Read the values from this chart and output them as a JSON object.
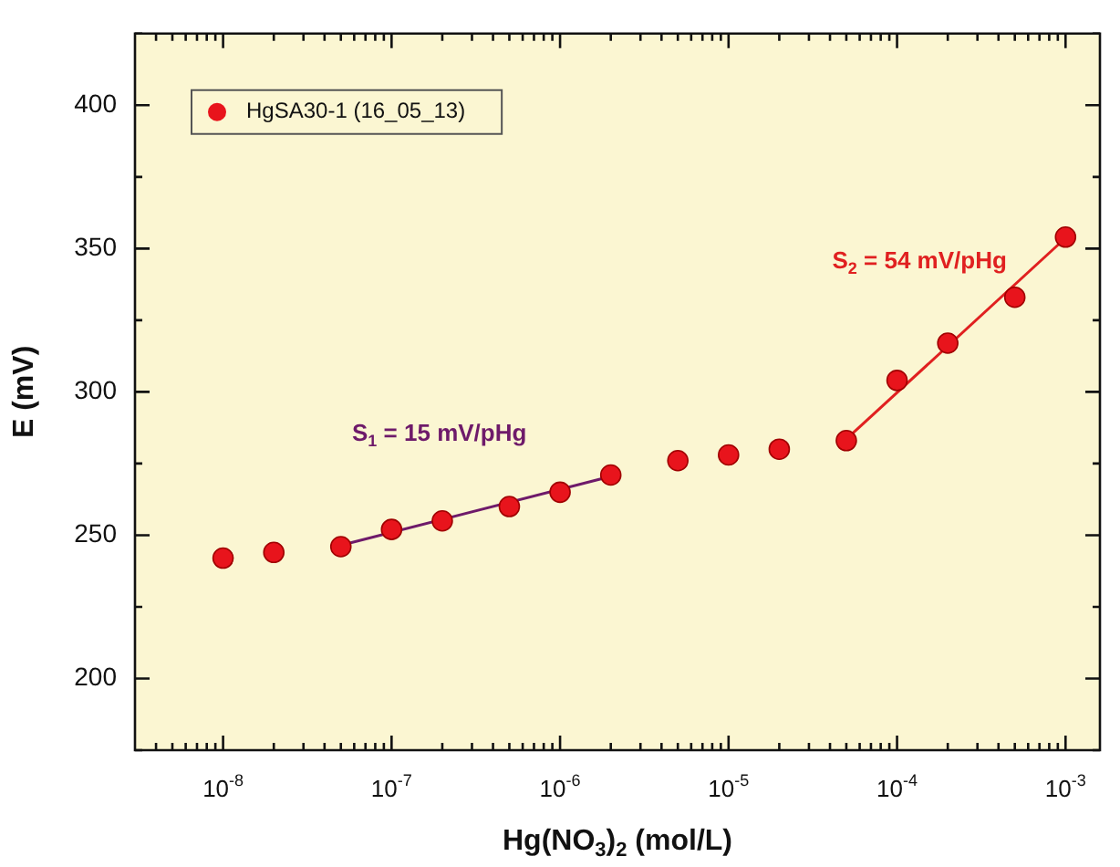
{
  "chart_data": {
    "type": "scatter",
    "xlabel": "Hg(NO$_{3}$)$_{2}$ (mol/L)",
    "ylabel": "E (mV)",
    "log": "x",
    "grid": false,
    "legend": "top left",
    "marker": "circle",
    "xlim": [
      3e-09,
      0.0016
    ],
    "ylim": [
      175,
      425
    ],
    "xticks": [
      {
        "value": 4e-09,
        "label": null
      },
      {
        "value": 5e-09,
        "label": null
      },
      {
        "value": 6e-09,
        "label": null
      },
      {
        "value": 7e-09,
        "label": null
      },
      {
        "value": 8e-09,
        "label": null
      },
      {
        "value": 9e-09,
        "label": null
      },
      {
        "value": 1e-08,
        "label": "10$^{-8}$"
      },
      {
        "value": 2e-08,
        "label": null
      },
      {
        "value": 3e-08,
        "label": null
      },
      {
        "value": 4e-08,
        "label": null
      },
      {
        "value": 5e-08,
        "label": null
      },
      {
        "value": 6e-08,
        "label": null
      },
      {
        "value": 7e-08,
        "label": null
      },
      {
        "value": 8e-08,
        "label": null
      },
      {
        "value": 9e-08,
        "label": null
      },
      {
        "value": 1e-07,
        "label": "10$^{-7}$"
      },
      {
        "value": 2e-07,
        "label": null
      },
      {
        "value": 3e-07,
        "label": null
      },
      {
        "value": 4e-07,
        "label": null
      },
      {
        "value": 5e-07,
        "label": null
      },
      {
        "value": 6e-07,
        "label": null
      },
      {
        "value": 7e-07,
        "label": null
      },
      {
        "value": 8e-07,
        "label": null
      },
      {
        "value": 9e-07,
        "label": null
      },
      {
        "value": 1e-06,
        "label": "10$^{-6}$"
      },
      {
        "value": 2e-06,
        "label": null
      },
      {
        "value": 3e-06,
        "label": null
      },
      {
        "value": 4e-06,
        "label": null
      },
      {
        "value": 5e-06,
        "label": null
      },
      {
        "value": 6e-06,
        "label": null
      },
      {
        "value": 7e-06,
        "label": null
      },
      {
        "value": 8e-06,
        "label": null
      },
      {
        "value": 9e-06,
        "label": null
      },
      {
        "value": 1e-05,
        "label": "10$^{-5}$"
      },
      {
        "value": 2e-05,
        "label": null
      },
      {
        "value": 3e-05,
        "label": null
      },
      {
        "value": 4e-05,
        "label": null
      },
      {
        "value": 5e-05,
        "label": null
      },
      {
        "value": 6e-05,
        "label": null
      },
      {
        "value": 7e-05,
        "label": null
      },
      {
        "value": 8e-05,
        "label": null
      },
      {
        "value": 9e-05,
        "label": null
      },
      {
        "value": 0.0001,
        "label": "10$^{-4}$"
      },
      {
        "value": 0.0002,
        "label": null
      },
      {
        "value": 0.0003,
        "label": null
      },
      {
        "value": 0.0004,
        "label": null
      },
      {
        "value": 0.0005,
        "label": null
      },
      {
        "value": 0.0006,
        "label": null
      },
      {
        "value": 0.0007,
        "label": null
      },
      {
        "value": 0.0008,
        "label": null
      },
      {
        "value": 0.0009,
        "label": null
      },
      {
        "value": 0.001,
        "label": "10$^{-3}$"
      }
    ],
    "yticks": [
      {
        "value": 175,
        "label": null
      },
      200,
      {
        "value": 225,
        "label": null
      },
      250,
      {
        "value": 275,
        "label": null
      },
      300,
      {
        "value": 325,
        "label": null
      },
      350,
      {
        "value": 375,
        "label": null
      },
      400,
      {
        "value": 425,
        "label": null
      }
    ],
    "series": [
      {
        "name": "HgSA30-1 (16_05_13)",
        "color": "#e8141c",
        "x": [
          1e-08,
          2e-08,
          5e-08,
          1e-07,
          2e-07,
          5e-07,
          1e-06,
          2e-06,
          5e-06,
          1e-05,
          2e-05,
          5e-05,
          0.0001,
          0.0002,
          0.0005,
          0.001
        ],
        "values": [
          242,
          244,
          246,
          252,
          255,
          260,
          265,
          271,
          276,
          278,
          280,
          283,
          304,
          317,
          333,
          354
        ]
      },
      {
        "type": "line",
        "marker": "none",
        "color": "#6e1a6a",
        "x": [
          5e-08,
          2e-06
        ],
        "values": [
          246.5,
          270.5
        ]
      },
      {
        "type": "line",
        "marker": "none",
        "color": "#e02020",
        "x": [
          5e-05,
          0.001
        ],
        "values": [
          283.5,
          353.7
        ]
      }
    ],
    "annotations": [
      "S$_{1}$ = 15 mV/pHg",
      "S$_{2}$ = 54 mV/pHg"
    ]
  }
}
